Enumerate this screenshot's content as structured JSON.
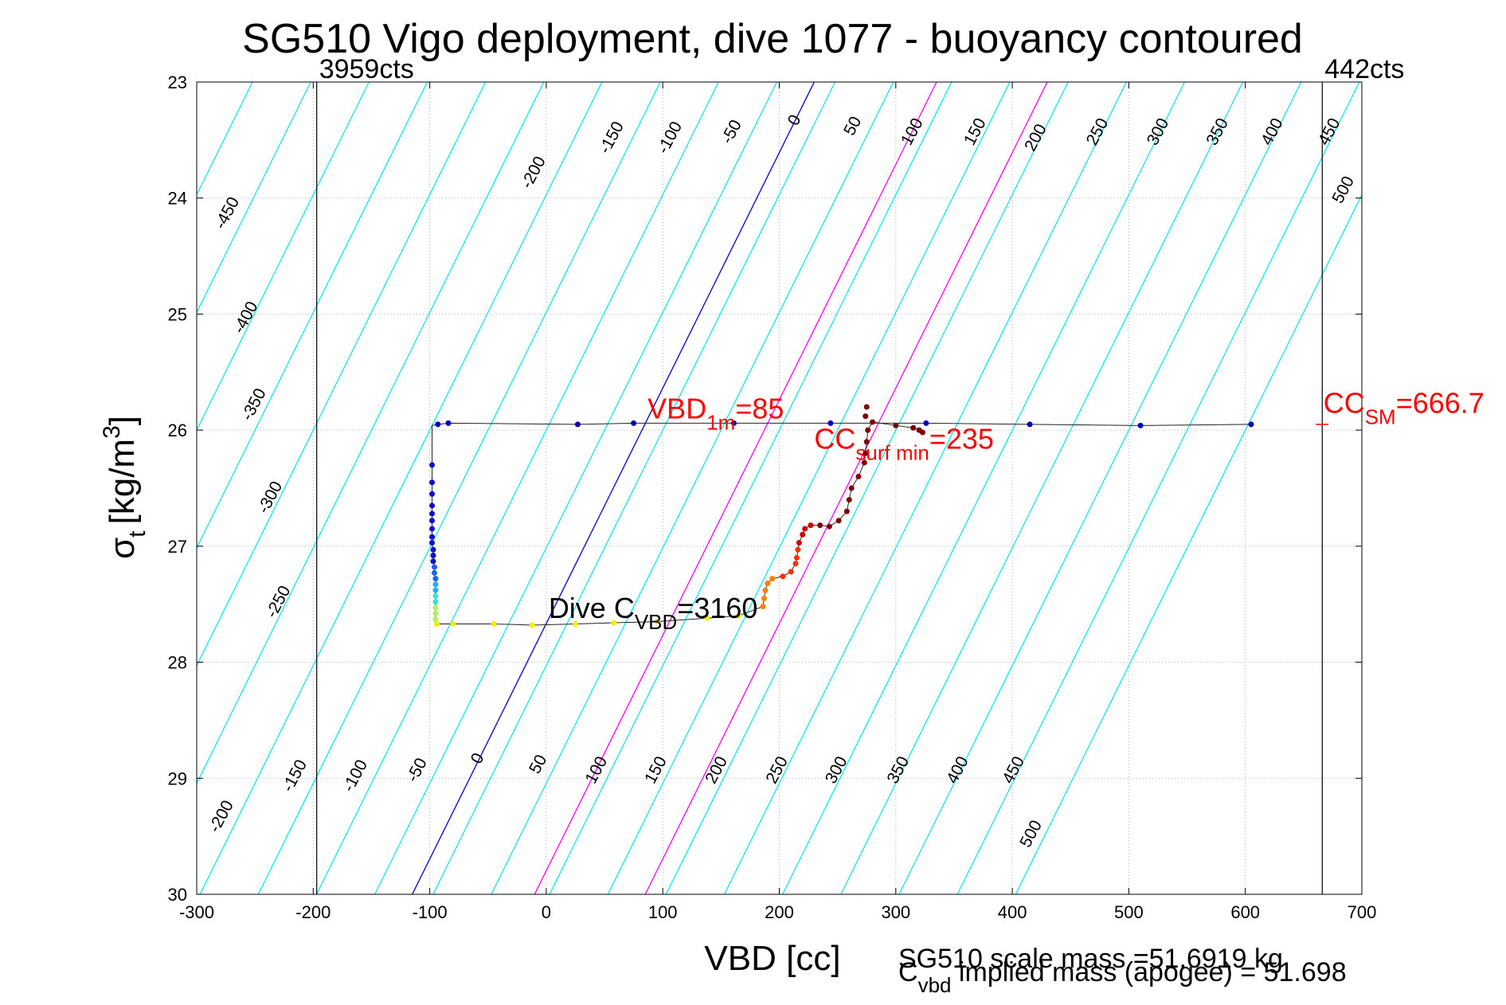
{
  "chart_data": {
    "type": "scatter",
    "title": "SG510 Vigo deployment, dive 1077 - buoyancy contoured",
    "xlabel": "VBD [cc]",
    "ylabel_main": "σ",
    "ylabel_sub": "t",
    "ylabel_unit_pre": "[kg/m",
    "ylabel_unit_sup": "3",
    "ylabel_unit_post": "]",
    "xlim": [
      -300,
      700
    ],
    "ylim": [
      23,
      30
    ],
    "y_reversed": true,
    "grid": true,
    "x_ticks": [
      "-300",
      "-200",
      "-100",
      "0",
      "100",
      "200",
      "300",
      "400",
      "500",
      "600",
      "700"
    ],
    "y_ticks": [
      "23",
      "24",
      "25",
      "26",
      "27",
      "28",
      "29",
      "30"
    ],
    "colors": {
      "contour": "#00e5ee",
      "zero_line": "#0000cc",
      "magenta": "#ff00ff",
      "annotation": "#ff0000",
      "text": "#000000"
    },
    "count_lines": [
      {
        "x": -197,
        "label": "3959cts"
      },
      {
        "x": 666,
        "label": "442cts"
      }
    ],
    "contour_slope": 0.0825,
    "contour_levels": [
      -500,
      -450,
      -400,
      -350,
      -300,
      -250,
      -200,
      -150,
      -100,
      -50,
      0,
      50,
      100,
      150,
      200,
      250,
      300,
      350,
      400,
      450,
      500,
      550,
      600
    ],
    "contour_labels_top": [
      {
        "label": "-450",
        "x": -270,
        "y": 24.15
      },
      {
        "label": "-400",
        "x": -254,
        "y": 25.05
      },
      {
        "label": "-350",
        "x": -247,
        "y": 25.8
      },
      {
        "label": "-300",
        "x": -233,
        "y": 26.6
      },
      {
        "label": "-250",
        "x": -226,
        "y": 27.5
      },
      {
        "label": "-200",
        "x": -7,
        "y": 23.8
      },
      {
        "label": "-150",
        "x": 60,
        "y": 23.5
      },
      {
        "label": "-100",
        "x": 110,
        "y": 23.5
      },
      {
        "label": "-50",
        "x": 163,
        "y": 23.45
      },
      {
        "label": "0",
        "x": 217,
        "y": 23.35
      },
      {
        "label": "50",
        "x": 267,
        "y": 23.4
      },
      {
        "label": "100",
        "x": 318,
        "y": 23.45
      },
      {
        "label": "150",
        "x": 372,
        "y": 23.45
      },
      {
        "label": "200",
        "x": 424,
        "y": 23.5
      },
      {
        "label": "250",
        "x": 477,
        "y": 23.45
      },
      {
        "label": "300",
        "x": 529,
        "y": 23.45
      },
      {
        "label": "350",
        "x": 580,
        "y": 23.45
      },
      {
        "label": "400",
        "x": 627,
        "y": 23.45
      },
      {
        "label": "450",
        "x": 676,
        "y": 23.45
      },
      {
        "label": "500",
        "x": 688,
        "y": 23.95
      }
    ],
    "contour_labels_bottom": [
      {
        "label": "-200",
        "x": -275,
        "y": 29.35
      },
      {
        "label": "-150",
        "x": -212,
        "y": 29.0
      },
      {
        "label": "-100",
        "x": -160,
        "y": 29.0
      },
      {
        "label": "-50",
        "x": -107,
        "y": 28.95
      },
      {
        "label": "0",
        "x": -55,
        "y": 28.85
      },
      {
        "label": "50",
        "x": -3,
        "y": 28.9
      },
      {
        "label": "100",
        "x": 47,
        "y": 28.95
      },
      {
        "label": "150",
        "x": 98,
        "y": 28.95
      },
      {
        "label": "200",
        "x": 150,
        "y": 28.95
      },
      {
        "label": "250",
        "x": 202,
        "y": 28.95
      },
      {
        "label": "300",
        "x": 253,
        "y": 28.95
      },
      {
        "label": "350",
        "x": 306,
        "y": 28.95
      },
      {
        "label": "400",
        "x": 357,
        "y": 28.95
      },
      {
        "label": "450",
        "x": 405,
        "y": 28.95
      },
      {
        "label": "500",
        "x": 420,
        "y": 29.5
      }
    ],
    "zero_line": {
      "x1": -115,
      "y1": 30,
      "x2": 230,
      "y2": 23
    },
    "magenta_lines": [
      {
        "x1": -10,
        "y1": 30,
        "x2": 335,
        "y2": 23
      },
      {
        "x1": 85,
        "y1": 30,
        "x2": 430,
        "y2": 23
      }
    ],
    "surface_points": [
      {
        "x": -93,
        "y": 25.95
      },
      {
        "x": -84,
        "y": 25.94
      },
      {
        "x": 27,
        "y": 25.95
      },
      {
        "x": 75,
        "y": 25.94
      },
      {
        "x": 161,
        "y": 25.94
      },
      {
        "x": 244,
        "y": 25.94
      },
      {
        "x": 326,
        "y": 25.94
      },
      {
        "x": 415,
        "y": 25.95
      },
      {
        "x": 510,
        "y": 25.96
      },
      {
        "x": 605,
        "y": 25.95
      }
    ],
    "descent_points": [
      {
        "x": -98,
        "y": 26.3
      },
      {
        "x": -98,
        "y": 26.45
      },
      {
        "x": -98,
        "y": 26.55
      },
      {
        "x": -98,
        "y": 26.65
      },
      {
        "x": -98,
        "y": 26.72
      },
      {
        "x": -98,
        "y": 26.78
      },
      {
        "x": -98,
        "y": 26.85
      },
      {
        "x": -98,
        "y": 26.92
      },
      {
        "x": -98,
        "y": 26.97
      },
      {
        "x": -97,
        "y": 27.03
      },
      {
        "x": -97,
        "y": 27.08
      },
      {
        "x": -97,
        "y": 27.13
      },
      {
        "x": -96,
        "y": 27.18
      },
      {
        "x": -96,
        "y": 27.23
      },
      {
        "x": -95,
        "y": 27.28
      },
      {
        "x": -95,
        "y": 27.33
      },
      {
        "x": -95,
        "y": 27.38
      },
      {
        "x": -95,
        "y": 27.43
      },
      {
        "x": -95,
        "y": 27.48
      },
      {
        "x": -95,
        "y": 27.53
      },
      {
        "x": -95,
        "y": 27.58
      },
      {
        "x": -95,
        "y": 27.63
      }
    ],
    "bottom_points": [
      {
        "x": -94,
        "y": 27.67
      },
      {
        "x": -80,
        "y": 27.67
      },
      {
        "x": -45,
        "y": 27.67
      },
      {
        "x": -12,
        "y": 27.68
      },
      {
        "x": 25,
        "y": 27.67
      },
      {
        "x": 58,
        "y": 27.66
      },
      {
        "x": 95,
        "y": 27.65
      },
      {
        "x": 138,
        "y": 27.62
      },
      {
        "x": 165,
        "y": 27.6
      }
    ],
    "ascent_points": [
      {
        "x": 186,
        "y": 27.52
      },
      {
        "x": 187,
        "y": 27.45
      },
      {
        "x": 188,
        "y": 27.38
      },
      {
        "x": 190,
        "y": 27.32
      },
      {
        "x": 194,
        "y": 27.28
      },
      {
        "x": 203,
        "y": 27.26
      },
      {
        "x": 210,
        "y": 27.22
      },
      {
        "x": 214,
        "y": 27.15
      },
      {
        "x": 215,
        "y": 27.1
      },
      {
        "x": 216,
        "y": 27.03
      },
      {
        "x": 217,
        "y": 26.97
      },
      {
        "x": 220,
        "y": 26.9
      },
      {
        "x": 222,
        "y": 26.85
      },
      {
        "x": 227,
        "y": 26.82
      },
      {
        "x": 235,
        "y": 26.82
      },
      {
        "x": 243,
        "y": 26.83
      },
      {
        "x": 251,
        "y": 26.78
      },
      {
        "x": 258,
        "y": 26.7
      },
      {
        "x": 260,
        "y": 26.6
      },
      {
        "x": 262,
        "y": 26.5
      },
      {
        "x": 268,
        "y": 26.4
      },
      {
        "x": 273,
        "y": 26.28
      },
      {
        "x": 274,
        "y": 26.2
      },
      {
        "x": 275,
        "y": 26.1
      },
      {
        "x": 276,
        "y": 26.0
      },
      {
        "x": 280,
        "y": 25.93
      },
      {
        "x": 300,
        "y": 25.96
      },
      {
        "x": 315,
        "y": 25.98
      },
      {
        "x": 320,
        "y": 26.0
      },
      {
        "x": 323,
        "y": 26.02
      },
      {
        "x": 274,
        "y": 25.88
      },
      {
        "x": 275,
        "y": 25.8
      }
    ],
    "annotations": [
      {
        "id": "vbd1m",
        "main": "VBD",
        "sub": "1m",
        "post": "=85",
        "x": 87,
        "y": 25.9,
        "color": "#ff0000"
      },
      {
        "id": "ccsurf",
        "main": "CC",
        "sub": "surf min",
        "post": "=235",
        "x": 230,
        "y": 26.16,
        "color": "#ff0000"
      },
      {
        "id": "ccsm",
        "main": "CC",
        "sub": "SM",
        "post": "=666.7",
        "x": 667,
        "y": 25.85,
        "color": "#ff0000"
      },
      {
        "id": "divecvbd",
        "main": "Dive C",
        "sub": "VBD",
        "post": "=3160",
        "x": 2,
        "y": 27.62,
        "color": "#000000"
      }
    ],
    "sm_marker": {
      "x": 666,
      "y": 25.95
    },
    "footer_scale_mass": "SG510 scale mass =51.6919 kg",
    "footer_implied_main": "C",
    "footer_implied_sub": "vbd",
    "footer_implied_post": " implied mass (apogee) = 51.698"
  }
}
